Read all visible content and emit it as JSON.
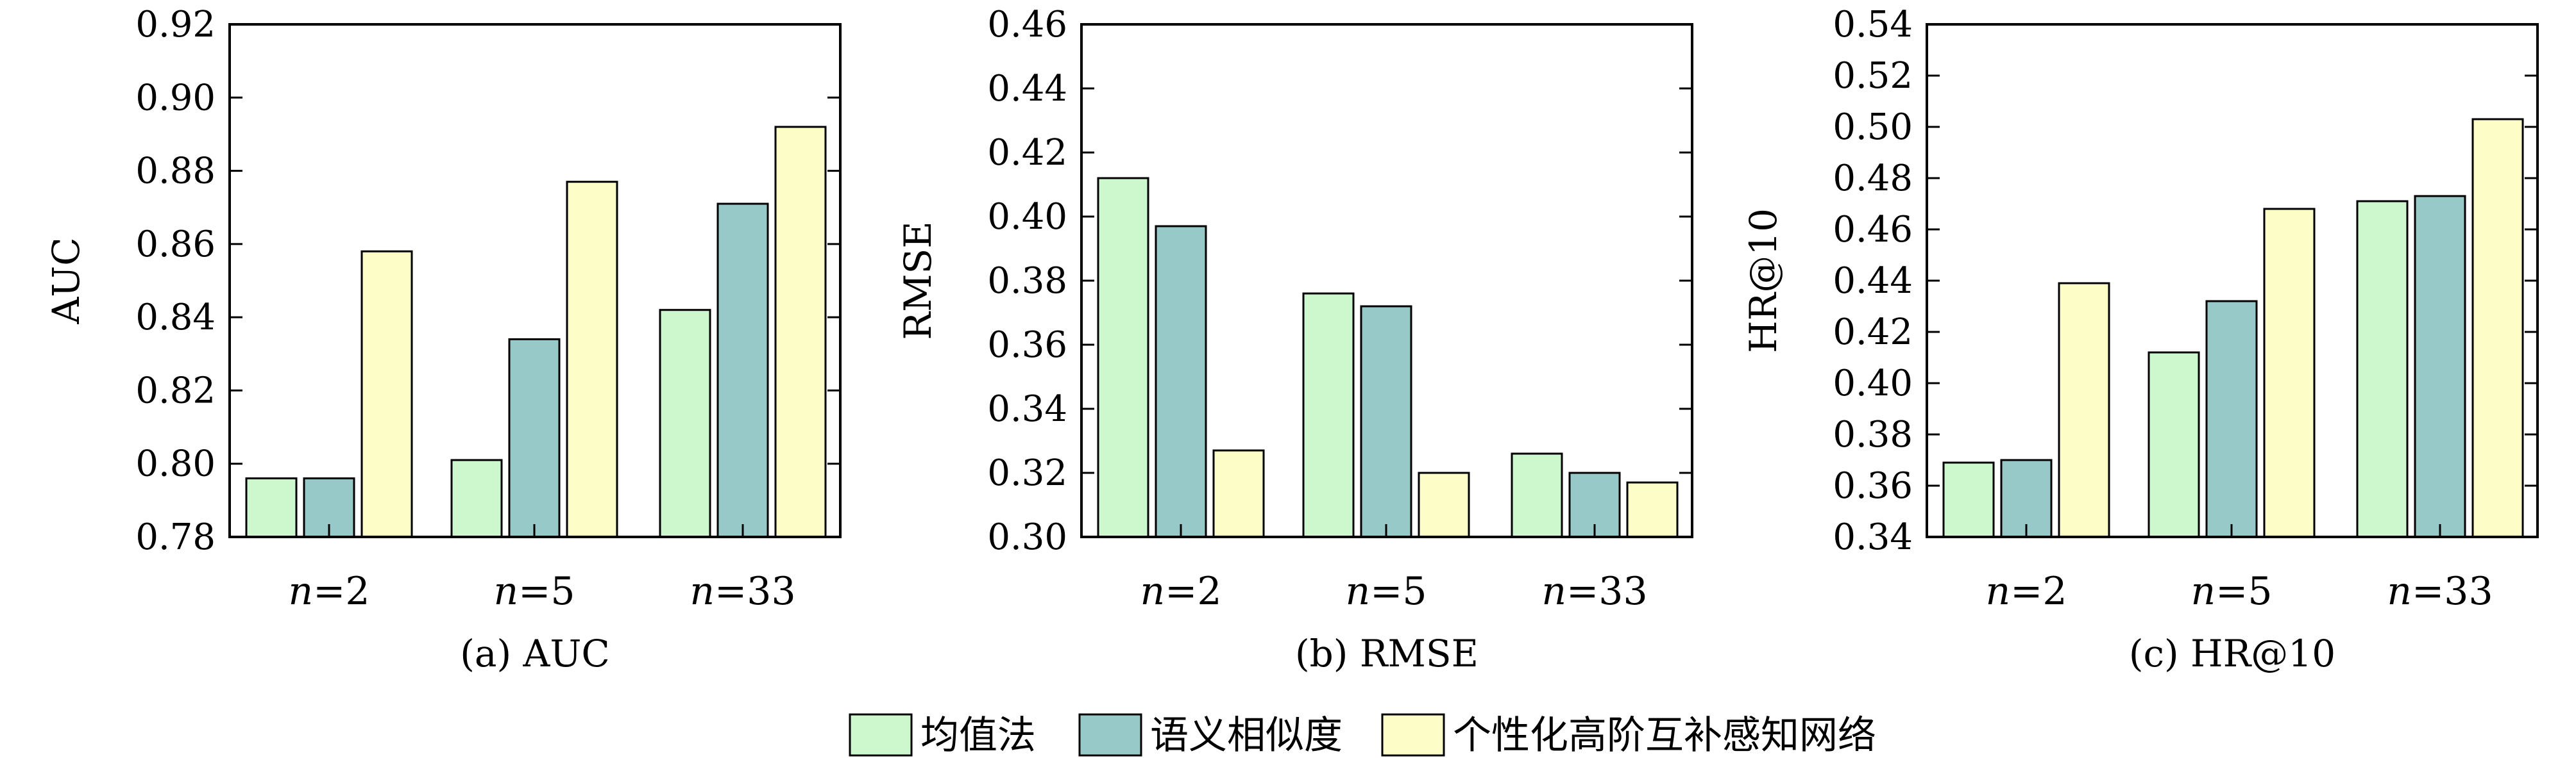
{
  "chart_data": [
    {
      "type": "bar",
      "caption": "(a) AUC",
      "ylabel": "AUC",
      "categories": [
        "n=2",
        "n=5",
        "n=33"
      ],
      "ylim": [
        0.78,
        0.92
      ],
      "yticks": [
        "0.78",
        "0.80",
        "0.82",
        "0.84",
        "0.86",
        "0.88",
        "0.90",
        "0.92"
      ],
      "series": [
        {
          "name": "均值法",
          "values": [
            0.796,
            0.801,
            0.842
          ]
        },
        {
          "name": "语义相似度",
          "values": [
            0.796,
            0.834,
            0.871
          ]
        },
        {
          "name": "个性化高阶互补感知网络",
          "values": [
            0.858,
            0.877,
            0.892
          ]
        }
      ],
      "grid": false
    },
    {
      "type": "bar",
      "caption": "(b) RMSE",
      "ylabel": "RMSE",
      "categories": [
        "n=2",
        "n=5",
        "n=33"
      ],
      "ylim": [
        0.3,
        0.46
      ],
      "yticks": [
        "0.30",
        "0.32",
        "0.34",
        "0.36",
        "0.38",
        "0.40",
        "0.42",
        "0.44",
        "0.46"
      ],
      "series": [
        {
          "name": "均值法",
          "values": [
            0.412,
            0.376,
            0.326
          ]
        },
        {
          "name": "语义相似度",
          "values": [
            0.397,
            0.372,
            0.32
          ]
        },
        {
          "name": "个性化高阶互补感知网络",
          "values": [
            0.327,
            0.32,
            0.317
          ]
        }
      ],
      "grid": false
    },
    {
      "type": "bar",
      "caption": "(c) HR@10",
      "ylabel": "HR@10",
      "categories": [
        "n=2",
        "n=5",
        "n=33"
      ],
      "ylim": [
        0.34,
        0.54
      ],
      "yticks": [
        "0.34",
        "0.36",
        "0.38",
        "0.40",
        "0.42",
        "0.44",
        "0.46",
        "0.48",
        "0.50",
        "0.52",
        "0.54"
      ],
      "series": [
        {
          "name": "均值法",
          "values": [
            0.369,
            0.412,
            0.471
          ]
        },
        {
          "name": "语义相似度",
          "values": [
            0.37,
            0.432,
            0.473
          ]
        },
        {
          "name": "个性化高阶互补感知网络",
          "values": [
            0.439,
            0.468,
            0.503
          ]
        }
      ],
      "grid": false
    }
  ],
  "legend": {
    "placement": "bottom-center",
    "items": [
      {
        "name": "均值法",
        "color": "#cdf7cc"
      },
      {
        "name": "语义相似度",
        "color": "#96c9c8"
      },
      {
        "name": "个性化高阶互补感知网络",
        "color": "#fdfdc8"
      }
    ]
  }
}
